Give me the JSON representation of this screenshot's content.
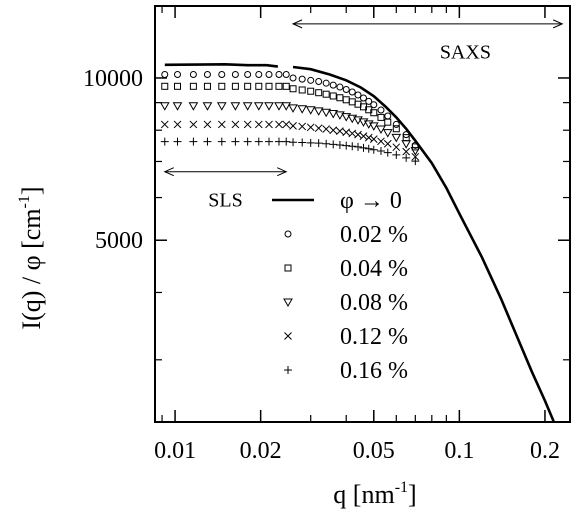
{
  "chart_data": {
    "type": "scatter",
    "xlabel": "q  [nm",
    "xlabel_sup": "-1",
    "xlabel_end": "]",
    "ylabel": "I(q) / φ [cm",
    "ylabel_sup": "-1",
    "ylabel_end": "]",
    "xscale": "log",
    "yscale": "log",
    "xlim": [
      0.0085,
      0.245
    ],
    "ylim": [
      2300,
      13600
    ],
    "xticks": [
      {
        "value": 0.01,
        "label": "0.01"
      },
      {
        "value": 0.02,
        "label": "0.02"
      },
      {
        "value": 0.05,
        "label": "0.05"
      },
      {
        "value": 0.1,
        "label": "0.1"
      },
      {
        "value": 0.2,
        "label": "0.2"
      }
    ],
    "yticks": [
      {
        "value": 5000,
        "label": "5000"
      },
      {
        "value": 10000,
        "label": "10000"
      }
    ],
    "grid": false,
    "legend_placement": "center",
    "series": [
      {
        "name": "φ → 0",
        "marker": "line",
        "points": [
          [
            0.0092,
            10580
          ],
          [
            0.012,
            10590
          ],
          [
            0.015,
            10600
          ],
          [
            0.018,
            10560
          ],
          [
            0.021,
            10560
          ],
          [
            0.023,
            10500
          ],
          [
            0.026,
            10480
          ],
          [
            0.03,
            10380
          ],
          [
            0.035,
            10150
          ],
          [
            0.04,
            9900
          ],
          [
            0.045,
            9600
          ],
          [
            0.05,
            9250
          ],
          [
            0.055,
            8850
          ],
          [
            0.06,
            8450
          ],
          [
            0.065,
            8050
          ],
          [
            0.07,
            7650
          ],
          [
            0.08,
            6950
          ],
          [
            0.09,
            6250
          ],
          [
            0.1,
            5600
          ],
          [
            0.12,
            4650
          ],
          [
            0.14,
            3900
          ],
          [
            0.16,
            3300
          ],
          [
            0.18,
            2850
          ],
          [
            0.2,
            2520
          ],
          [
            0.215,
            2300
          ]
        ]
      },
      {
        "name": "0.02 %",
        "marker": "circle",
        "points": [
          [
            0.0092,
            10150
          ],
          [
            0.0102,
            10150
          ],
          [
            0.0116,
            10150
          ],
          [
            0.013,
            10150
          ],
          [
            0.0146,
            10150
          ],
          [
            0.0163,
            10150
          ],
          [
            0.018,
            10150
          ],
          [
            0.0197,
            10150
          ],
          [
            0.0214,
            10150
          ],
          [
            0.0232,
            10150
          ],
          [
            0.0246,
            10150
          ],
          [
            0.026,
            10000
          ],
          [
            0.028,
            9950
          ],
          [
            0.03,
            9900
          ],
          [
            0.032,
            9850
          ],
          [
            0.034,
            9780
          ],
          [
            0.036,
            9700
          ],
          [
            0.038,
            9620
          ],
          [
            0.04,
            9520
          ],
          [
            0.042,
            9420
          ],
          [
            0.044,
            9300
          ],
          [
            0.046,
            9180
          ],
          [
            0.048,
            9050
          ],
          [
            0.05,
            8920
          ],
          [
            0.053,
            8720
          ],
          [
            0.056,
            8500
          ],
          [
            0.06,
            8200
          ],
          [
            0.065,
            7850
          ],
          [
            0.07,
            7500
          ]
        ]
      },
      {
        "name": "0.04 %",
        "marker": "square",
        "points": [
          [
            0.0092,
            9650
          ],
          [
            0.0102,
            9650
          ],
          [
            0.0116,
            9650
          ],
          [
            0.013,
            9650
          ],
          [
            0.0146,
            9650
          ],
          [
            0.0163,
            9650
          ],
          [
            0.018,
            9650
          ],
          [
            0.0197,
            9650
          ],
          [
            0.0214,
            9650
          ],
          [
            0.0232,
            9650
          ],
          [
            0.0246,
            9650
          ],
          [
            0.026,
            9550
          ],
          [
            0.028,
            9500
          ],
          [
            0.03,
            9450
          ],
          [
            0.032,
            9390
          ],
          [
            0.034,
            9330
          ],
          [
            0.036,
            9260
          ],
          [
            0.038,
            9190
          ],
          [
            0.04,
            9110
          ],
          [
            0.042,
            9030
          ],
          [
            0.044,
            8940
          ],
          [
            0.046,
            8840
          ],
          [
            0.048,
            8730
          ],
          [
            0.05,
            8620
          ],
          [
            0.053,
            8450
          ],
          [
            0.056,
            8280
          ],
          [
            0.06,
            8050
          ],
          [
            0.065,
            7750
          ],
          [
            0.07,
            7450
          ]
        ]
      },
      {
        "name": "0.08 %",
        "marker": "triangle-down",
        "points": [
          [
            0.0092,
            8880
          ],
          [
            0.0102,
            8880
          ],
          [
            0.0116,
            8880
          ],
          [
            0.013,
            8880
          ],
          [
            0.0146,
            8880
          ],
          [
            0.0163,
            8880
          ],
          [
            0.018,
            8880
          ],
          [
            0.0197,
            8880
          ],
          [
            0.0214,
            8880
          ],
          [
            0.0232,
            8880
          ],
          [
            0.0246,
            8880
          ],
          [
            0.026,
            8800
          ],
          [
            0.028,
            8770
          ],
          [
            0.03,
            8730
          ],
          [
            0.032,
            8690
          ],
          [
            0.034,
            8640
          ],
          [
            0.036,
            8590
          ],
          [
            0.038,
            8540
          ],
          [
            0.04,
            8480
          ],
          [
            0.042,
            8420
          ],
          [
            0.044,
            8360
          ],
          [
            0.046,
            8290
          ],
          [
            0.048,
            8220
          ],
          [
            0.05,
            8150
          ],
          [
            0.053,
            8040
          ],
          [
            0.056,
            7920
          ],
          [
            0.06,
            7760
          ],
          [
            0.065,
            7550
          ],
          [
            0.07,
            7330
          ]
        ]
      },
      {
        "name": "0.12 %",
        "marker": "x",
        "points": [
          [
            0.0092,
            8200
          ],
          [
            0.0102,
            8200
          ],
          [
            0.0116,
            8200
          ],
          [
            0.013,
            8200
          ],
          [
            0.0146,
            8200
          ],
          [
            0.0163,
            8200
          ],
          [
            0.018,
            8200
          ],
          [
            0.0197,
            8200
          ],
          [
            0.0214,
            8200
          ],
          [
            0.0232,
            8200
          ],
          [
            0.0246,
            8200
          ],
          [
            0.026,
            8150
          ],
          [
            0.028,
            8130
          ],
          [
            0.03,
            8100
          ],
          [
            0.032,
            8070
          ],
          [
            0.034,
            8040
          ],
          [
            0.036,
            8000
          ],
          [
            0.038,
            7970
          ],
          [
            0.04,
            7930
          ],
          [
            0.042,
            7890
          ],
          [
            0.044,
            7850
          ],
          [
            0.046,
            7800
          ],
          [
            0.048,
            7750
          ],
          [
            0.05,
            7700
          ],
          [
            0.053,
            7630
          ],
          [
            0.056,
            7550
          ],
          [
            0.06,
            7440
          ],
          [
            0.065,
            7300
          ],
          [
            0.07,
            7140
          ]
        ]
      },
      {
        "name": "0.16 %",
        "marker": "plus",
        "points": [
          [
            0.0092,
            7620
          ],
          [
            0.0102,
            7620
          ],
          [
            0.0116,
            7620
          ],
          [
            0.013,
            7620
          ],
          [
            0.0146,
            7620
          ],
          [
            0.0163,
            7620
          ],
          [
            0.018,
            7620
          ],
          [
            0.0197,
            7620
          ],
          [
            0.0214,
            7620
          ],
          [
            0.0232,
            7620
          ],
          [
            0.0246,
            7620
          ],
          [
            0.026,
            7600
          ],
          [
            0.028,
            7590
          ],
          [
            0.03,
            7580
          ],
          [
            0.032,
            7570
          ],
          [
            0.034,
            7550
          ],
          [
            0.036,
            7530
          ],
          [
            0.038,
            7510
          ],
          [
            0.04,
            7490
          ],
          [
            0.042,
            7470
          ],
          [
            0.044,
            7450
          ],
          [
            0.046,
            7420
          ],
          [
            0.048,
            7390
          ],
          [
            0.05,
            7360
          ],
          [
            0.053,
            7320
          ],
          [
            0.056,
            7270
          ],
          [
            0.06,
            7200
          ],
          [
            0.065,
            7110
          ],
          [
            0.07,
            7010
          ]
        ]
      }
    ],
    "annotations": [
      {
        "text": "SLS",
        "x_range": [
          0.0092,
          0.0246
        ],
        "y": 6700,
        "label_y": 5950
      },
      {
        "text": "SAXS",
        "x_range": [
          0.026,
          0.23
        ],
        "y": 12600,
        "label_y": 11200,
        "label_x": 0.105
      }
    ]
  }
}
